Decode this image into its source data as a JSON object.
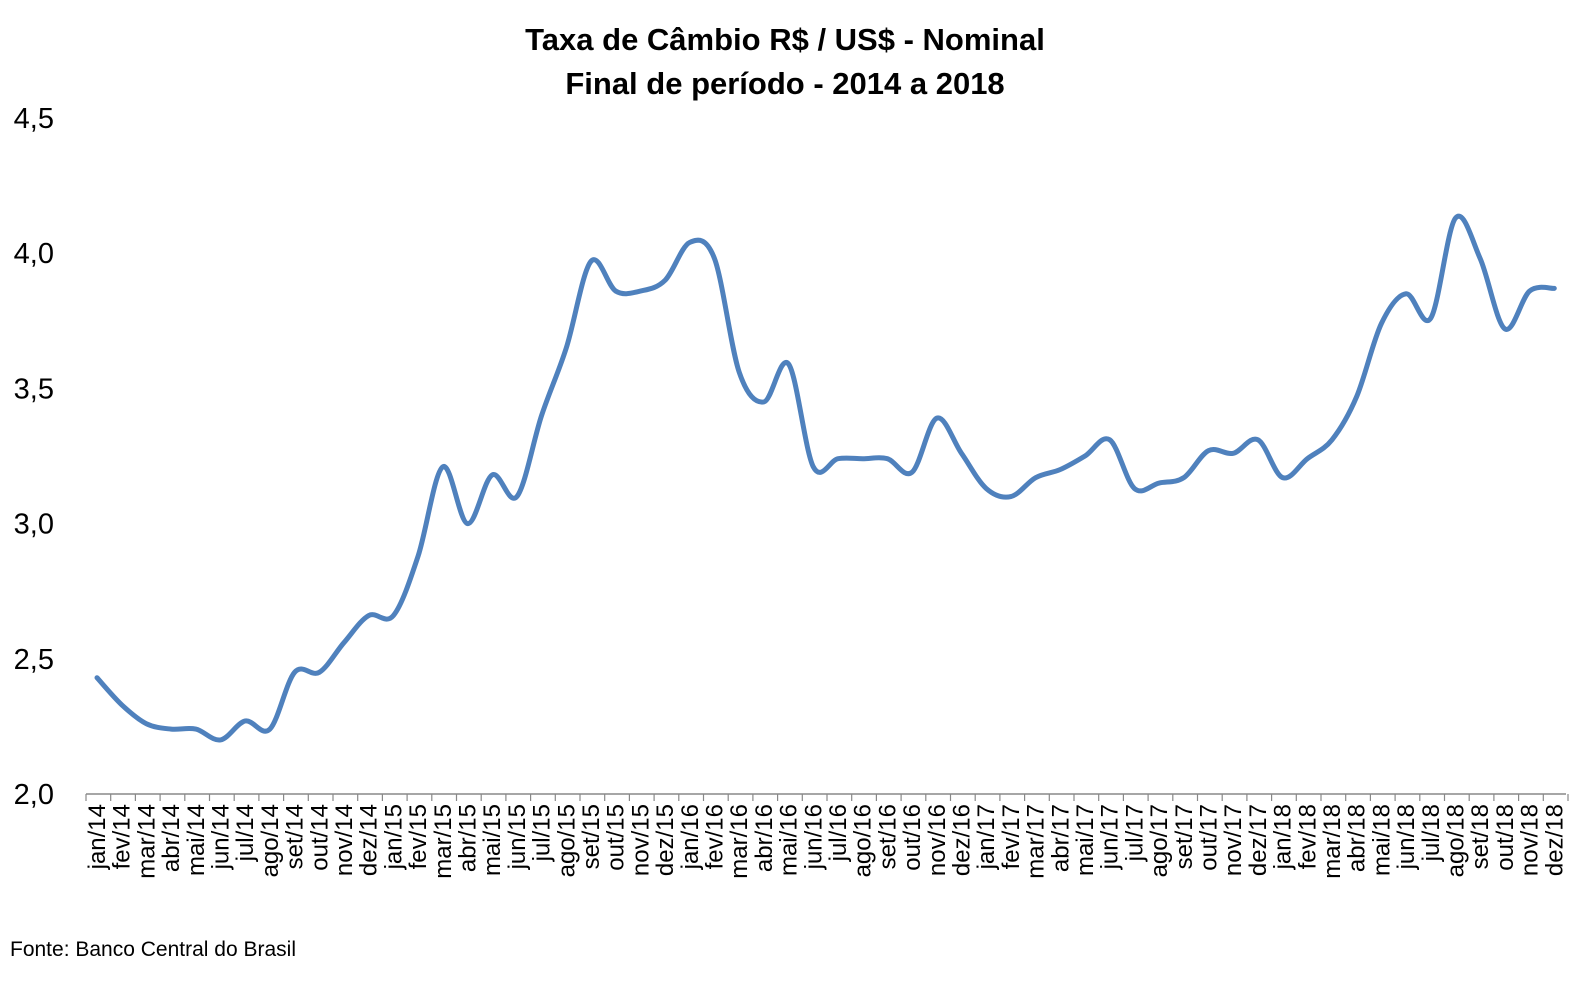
{
  "chart_data": {
    "type": "line",
    "title": "Taxa de Câmbio R$ / US$ - Nominal",
    "subtitle": "Final de período - 2014 a 2018",
    "xlabel": "",
    "ylabel": "",
    "ylim": [
      2.0,
      4.5
    ],
    "yticks": [
      "2,0",
      "2,5",
      "3,0",
      "3,5",
      "4,0",
      "4,5"
    ],
    "ytick_values": [
      2.0,
      2.5,
      3.0,
      3.5,
      4.0,
      4.5
    ],
    "grid": false,
    "legend": "none",
    "line_color": "#4f81bd",
    "categories": [
      "jan/14",
      "fev/14",
      "mar/14",
      "abr/14",
      "mai/14",
      "jun/14",
      "jul/14",
      "ago/14",
      "set/14",
      "out/14",
      "nov/14",
      "dez/14",
      "jan/15",
      "fev/15",
      "mar/15",
      "abr/15",
      "mai/15",
      "jun/15",
      "jul/15",
      "ago/15",
      "set/15",
      "out/15",
      "nov/15",
      "dez/15",
      "jan/16",
      "fev/16",
      "mar/16",
      "abr/16",
      "mai/16",
      "jun/16",
      "jul/16",
      "ago/16",
      "set/16",
      "out/16",
      "nov/16",
      "dez/16",
      "jan/17",
      "fev/17",
      "mar/17",
      "abr/17",
      "mai/17",
      "jun/17",
      "jul/17",
      "ago/17",
      "set/17",
      "out/17",
      "nov/17",
      "dez/17",
      "jan/18",
      "fev/18",
      "mar/18",
      "abr/18",
      "mai/18",
      "jun/18",
      "jul/18",
      "ago/18",
      "set/18",
      "out/18",
      "nov/18",
      "dez/18"
    ],
    "series": [
      {
        "values": [
          2.43,
          2.33,
          2.26,
          2.24,
          2.24,
          2.2,
          2.27,
          2.24,
          2.45,
          2.45,
          2.56,
          2.66,
          2.66,
          2.88,
          3.21,
          3.0,
          3.18,
          3.1,
          3.4,
          3.65,
          3.97,
          3.86,
          3.86,
          3.9,
          4.04,
          3.98,
          3.56,
          3.45,
          3.59,
          3.21,
          3.24,
          3.24,
          3.24,
          3.19,
          3.39,
          3.26,
          3.13,
          3.1,
          3.17,
          3.2,
          3.25,
          3.31,
          3.13,
          3.15,
          3.17,
          3.27,
          3.26,
          3.31,
          3.17,
          3.24,
          3.31,
          3.47,
          3.74,
          3.85,
          3.76,
          4.13,
          3.98,
          3.72,
          3.86,
          3.87
        ]
      }
    ]
  },
  "footer": {
    "source": "Fonte: Banco Central do Brasil"
  }
}
